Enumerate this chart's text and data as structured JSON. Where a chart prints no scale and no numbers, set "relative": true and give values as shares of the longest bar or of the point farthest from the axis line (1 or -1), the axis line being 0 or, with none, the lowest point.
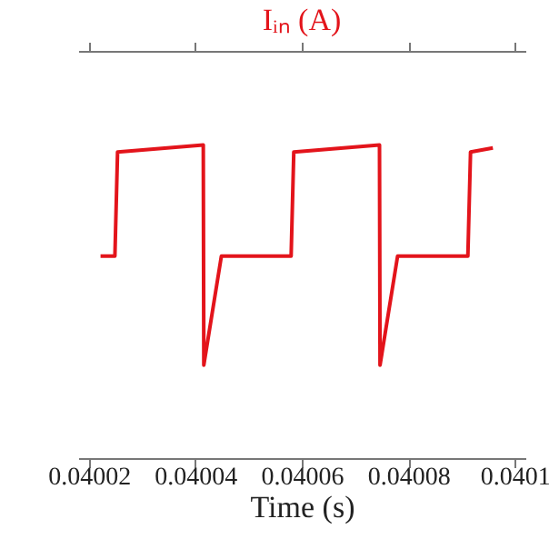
{
  "chart_data": {
    "type": "line",
    "title": "Iᵢₙ (A)",
    "xlabel": "Time (s)",
    "relative": true,
    "xlim": [
      0.040018,
      0.040102
    ],
    "xticks": [
      0.04002,
      0.04004,
      0.04006,
      0.04008,
      0.0401
    ],
    "x": [
      0.0400222,
      0.0400249,
      0.0400254,
      0.0400415,
      0.0400416,
      0.0400449,
      0.040058,
      0.0400585,
      0.0400746,
      0.0400747,
      0.040078,
      0.0400912,
      0.0400917,
      0.0400959
    ],
    "series": [
      {
        "color": "#e3141b",
        "values": [
          0.645,
          0.645,
          0.977,
          1,
          0.297,
          0.645,
          0.645,
          0.977,
          1,
          0.297,
          0.645,
          0.645,
          0.977,
          0.99
        ]
      }
    ],
    "grid": false,
    "legend": false,
    "line_style": "solid",
    "marker": "none"
  }
}
